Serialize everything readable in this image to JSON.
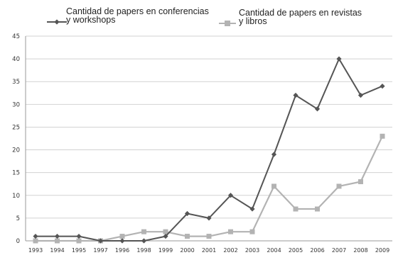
{
  "chart_data": {
    "type": "line",
    "categories": [
      "1993",
      "1994",
      "1995",
      "1997",
      "1996",
      "1998",
      "1999",
      "2000",
      "2001",
      "2002",
      "2003",
      "2004",
      "2005",
      "2006",
      "2007",
      "2008",
      "2009"
    ],
    "series": [
      {
        "name": "Cantidad de papers en conferencias y workshops",
        "legend_lines": [
          "Cantidad de papers en conferencias",
          "y workshops"
        ],
        "color": "#555555",
        "marker": "diamond",
        "values": [
          1,
          1,
          1,
          0,
          0,
          0,
          1,
          6,
          5,
          10,
          7,
          19,
          32,
          29,
          40,
          32,
          34
        ]
      },
      {
        "name": "Cantidad de papers en revistas y libros",
        "legend_lines": [
          "Cantidad de papers en revistas",
          "y libros"
        ],
        "color": "#b3b3b3",
        "marker": "square",
        "values": [
          0,
          0,
          0,
          0,
          1,
          2,
          2,
          1,
          1,
          2,
          2,
          12,
          7,
          7,
          12,
          13,
          23
        ]
      }
    ],
    "ylim": [
      0,
      45
    ],
    "yticks": [
      0,
      5,
      10,
      15,
      20,
      25,
      30,
      35,
      40,
      45
    ],
    "grid": "horizontal",
    "legend": "top"
  }
}
